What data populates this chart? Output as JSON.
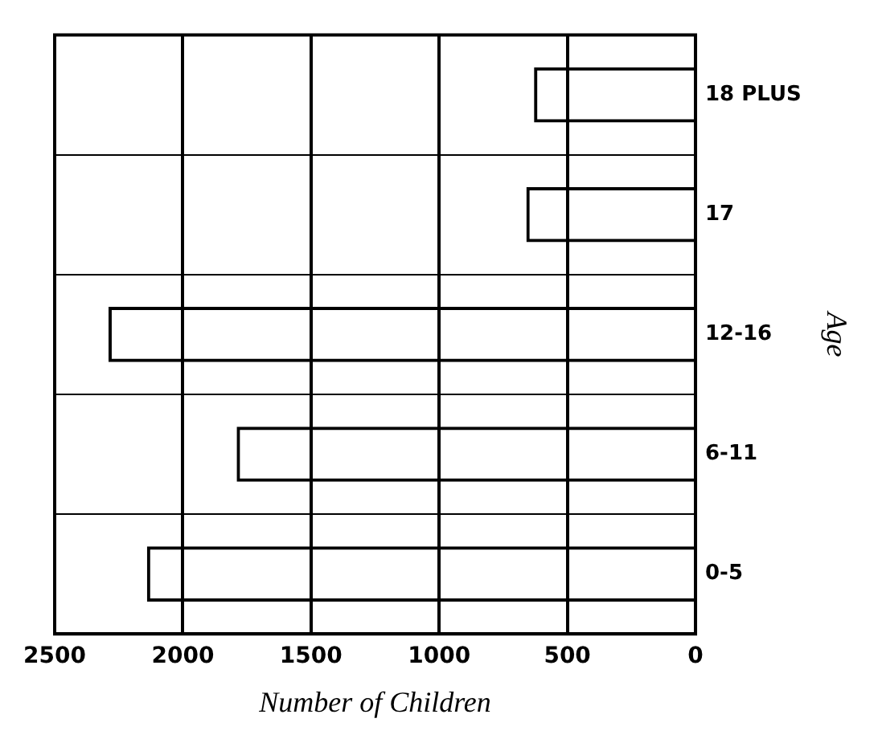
{
  "chart_data": {
    "type": "bar",
    "orientation": "horizontal",
    "xlabel": "Number of Children",
    "ylabel": "Age",
    "categories": [
      "18 PLUS",
      "17",
      "12-16",
      "6-11",
      "0-5"
    ],
    "values": [
      630,
      660,
      2290,
      1790,
      2140
    ],
    "color": "#000000",
    "xlim": [
      2500,
      0
    ],
    "xticks": [
      0,
      500,
      1000,
      1500,
      2000,
      2500
    ],
    "grid": true
  }
}
